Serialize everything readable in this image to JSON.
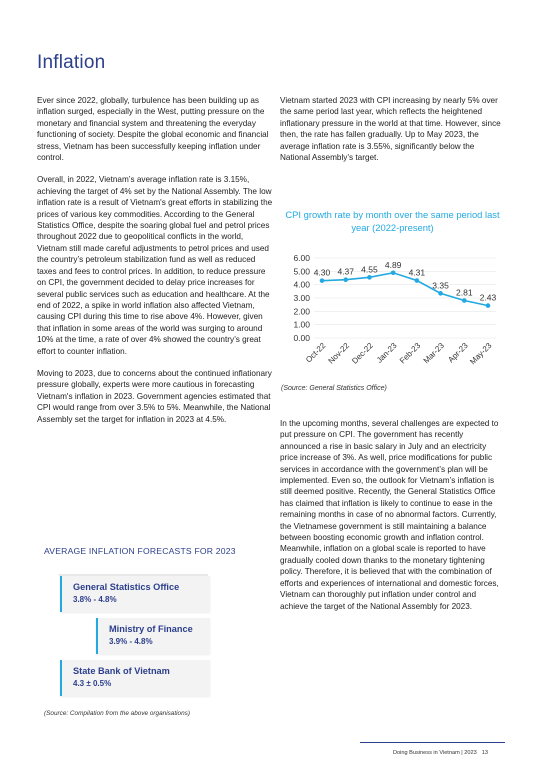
{
  "heading": "Inflation",
  "left_column": [
    "Ever since 2022, globally, turbulence has been building up as inflation surged, especially in the West, putting pressure on the monetary and financial system and threatening the everyday functioning of society. Despite the global economic and financial stress, Vietnam has been successfully keeping inflation under control.",
    "Overall, in 2022, Vietnam’s average inflation rate is 3.15%, achieving the target of 4% set by the National Assembly. The low inflation rate is a result of Vietnam's great efforts in stabilizing the prices of various key commodities. According to the General Statistics Office, despite the soaring global fuel and petrol prices throughout 2022 due to geopolitical conflicts in the world, Vietnam still made careful adjustments to petrol prices and used the country’s petroleum stabilization fund as well as reduced taxes and fees to control prices. In addition, to reduce pressure on CPI, the government decided to delay price increases for several public services such as education and healthcare. At the end of 2022, a spike in world inflation also affected Vietnam, causing CPI during this time to rise above 4%. However, given that inflation in some areas of the world was surging to around 10% at the time, a rate of over 4% showed the country’s great effort to counter inflation.",
    "Moving to 2023, due to concerns about the continued inflationary pressure globally, experts were more cautious in forecasting Vietnam's inflation in 2023. Government agencies estimated that CPI would range from over 3.5% to 5%. Meanwhile, the National Assembly set the target for inflation in 2023 at 4.5%."
  ],
  "right_column_top": "Vietnam started 2023 with CPI increasing by nearly 5% over the same period last year, which reflects the heightened inflationary pressure in the world at that time. However, since then, the rate has fallen gradually. Up to May 2023, the average inflation rate is 3.55%, significantly below the National Assembly’s target.",
  "right_column_bottom": "In the upcoming months, several challenges are expected to put pressure on CPI. The government has recently announced a rise in basic salary in July and an electricity price increase of 3%. As well, price modifications for public services in accordance with the government’s plan will be implemented. Even so, the outlook for Vietnam’s inflation is still deemed positive. Recently, the General Statistics Office has claimed that inflation is likely to continue to ease in the remaining months in case of no abnormal factors. Currently, the Vietnamese government is still maintaining a balance between boosting economic growth and inflation control. Meanwhile, inflation on a global scale is reported to have gradually cooled down thanks to the monetary tightening policy. Therefore, it is believed that with the combination of efforts and experiences of international and domestic forces, Vietnam can thoroughly put inflation under control and achieve the target of the National Assembly for 2023.",
  "chart_source": "(Source: General Statistics Office)",
  "chart_data": {
    "type": "line",
    "title": "CPI growth rate by month over the same period last year (2022-present)",
    "categories": [
      "Oct-22",
      "Nov-22",
      "Dec-22",
      "Jan-23",
      "Feb-23",
      "Mar-23",
      "Apr-23",
      "May-23"
    ],
    "values": [
      4.3,
      4.37,
      4.55,
      4.89,
      4.31,
      3.35,
      2.81,
      2.43
    ],
    "value_labels": [
      "4.30",
      "4.37",
      "4.55",
      "4.89",
      "4.31",
      "3.35",
      "2.81",
      "2.43"
    ],
    "y_ticks": [
      "6.00",
      "5.00",
      "4.00",
      "3.00",
      "2.00",
      "1.00",
      "0.00"
    ],
    "ylim": [
      0,
      6
    ],
    "xlabel": "",
    "ylabel": "",
    "grid": false,
    "line_color": "#23a9e1",
    "grid_color": "#e6e6e6"
  },
  "forecasts": {
    "title": "AVERAGE INFLATION FORECASTS FOR 2023",
    "items": [
      {
        "name": "General Statistics Office",
        "value": "3.8% - 4.8%"
      },
      {
        "name": "Ministry of Finance",
        "value": "3.9% - 4.8%"
      },
      {
        "name": "State Bank of Vietnam",
        "value": "4.3 ± 0.5%"
      }
    ],
    "source": "(Source: Compilation from the above organisations)"
  },
  "footer": {
    "label": "Doing Business in Vietnam | 2023",
    "page": "13"
  },
  "colors": {
    "heading": "#2c3f8c",
    "accent": "#23a9e1",
    "box_bg": "#f3f3f3"
  }
}
